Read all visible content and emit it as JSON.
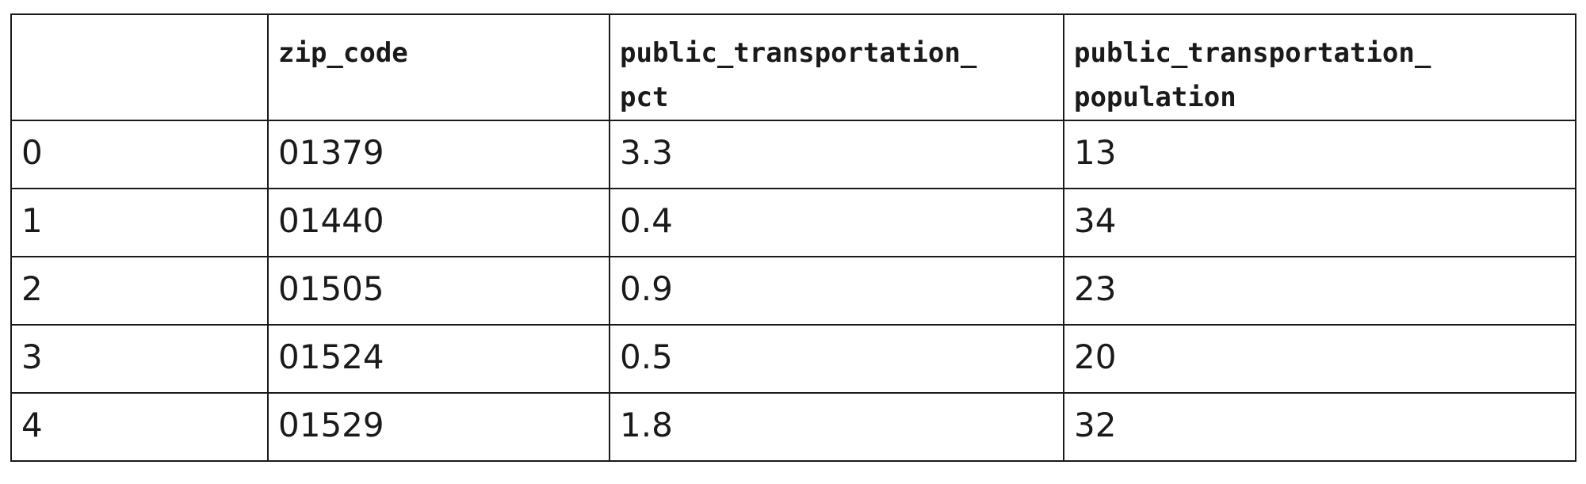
{
  "table": {
    "headers": [
      "",
      "zip_code",
      "public_transportation_\npct",
      "public_transportation_\npopulation"
    ],
    "header_lines": [
      [
        ""
      ],
      [
        "zip_code"
      ],
      [
        "public_transportation_",
        "pct"
      ],
      [
        "public_transportation_",
        "population"
      ]
    ],
    "rows": [
      {
        "index": "0",
        "zip_code": "01379",
        "pct": "3.3",
        "population": "13"
      },
      {
        "index": "1",
        "zip_code": "01440",
        "pct": "0.4",
        "population": "34"
      },
      {
        "index": "2",
        "zip_code": "01505",
        "pct": "0.9",
        "population": "23"
      },
      {
        "index": "3",
        "zip_code": "01524",
        "pct": "0.5",
        "population": "20"
      },
      {
        "index": "4",
        "zip_code": "01529",
        "pct": "1.8",
        "population": "32"
      }
    ]
  }
}
